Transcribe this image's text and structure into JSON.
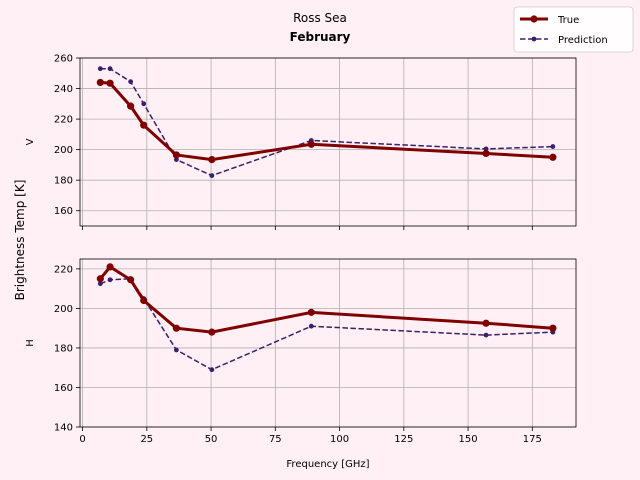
{
  "chart_data": {
    "type": "line",
    "title": "Ross Sea",
    "subtitle": "February",
    "xlabel": "Frequency [GHz]",
    "ylabel": "Brightness Temp [K]",
    "legend": {
      "placement": "top-right",
      "entries": [
        "True",
        "Prediction"
      ]
    },
    "grid": true,
    "xlim": [
      -1,
      192
    ],
    "xticks": [
      0,
      25,
      50,
      75,
      100,
      125,
      150,
      175
    ],
    "colors": {
      "true": "#800000",
      "prediction": "#3b1f6b"
    },
    "panels": [
      {
        "name": "V",
        "ylim": [
          150,
          260
        ],
        "yticks": [
          160,
          180,
          200,
          220,
          240,
          260
        ],
        "series": [
          {
            "name": "True",
            "x": [
              6.9,
              10.7,
              18.7,
              23.8,
              36.5,
              50.3,
              89,
              157,
              183
            ],
            "y": [
              244,
              243.5,
              228.5,
              216,
              196.5,
              193.5,
              203.5,
              197.5,
              195
            ]
          },
          {
            "name": "Prediction",
            "x": [
              6.9,
              10.7,
              18.7,
              23.8,
              36.5,
              50.3,
              89,
              157,
              183
            ],
            "y": [
              253,
              253,
              244.5,
              230,
              193.5,
              183,
              206,
              200.5,
              202
            ]
          }
        ]
      },
      {
        "name": "H",
        "ylim": [
          140,
          225
        ],
        "yticks": [
          140,
          160,
          180,
          200,
          220
        ],
        "series": [
          {
            "name": "True",
            "x": [
              6.9,
              10.7,
              18.7,
              23.8,
              36.5,
              50.3,
              89,
              157,
              183
            ],
            "y": [
              215,
              221,
              214.5,
              204,
              190,
              188,
              198,
              192.5,
              190
            ]
          },
          {
            "name": "Prediction",
            "x": [
              6.9,
              10.7,
              18.7,
              23.8,
              36.5,
              50.3,
              89,
              157,
              183
            ],
            "y": [
              212.5,
              214.5,
              215,
              205,
              179,
              169,
              191,
              186.5,
              188
            ]
          }
        ]
      }
    ]
  }
}
